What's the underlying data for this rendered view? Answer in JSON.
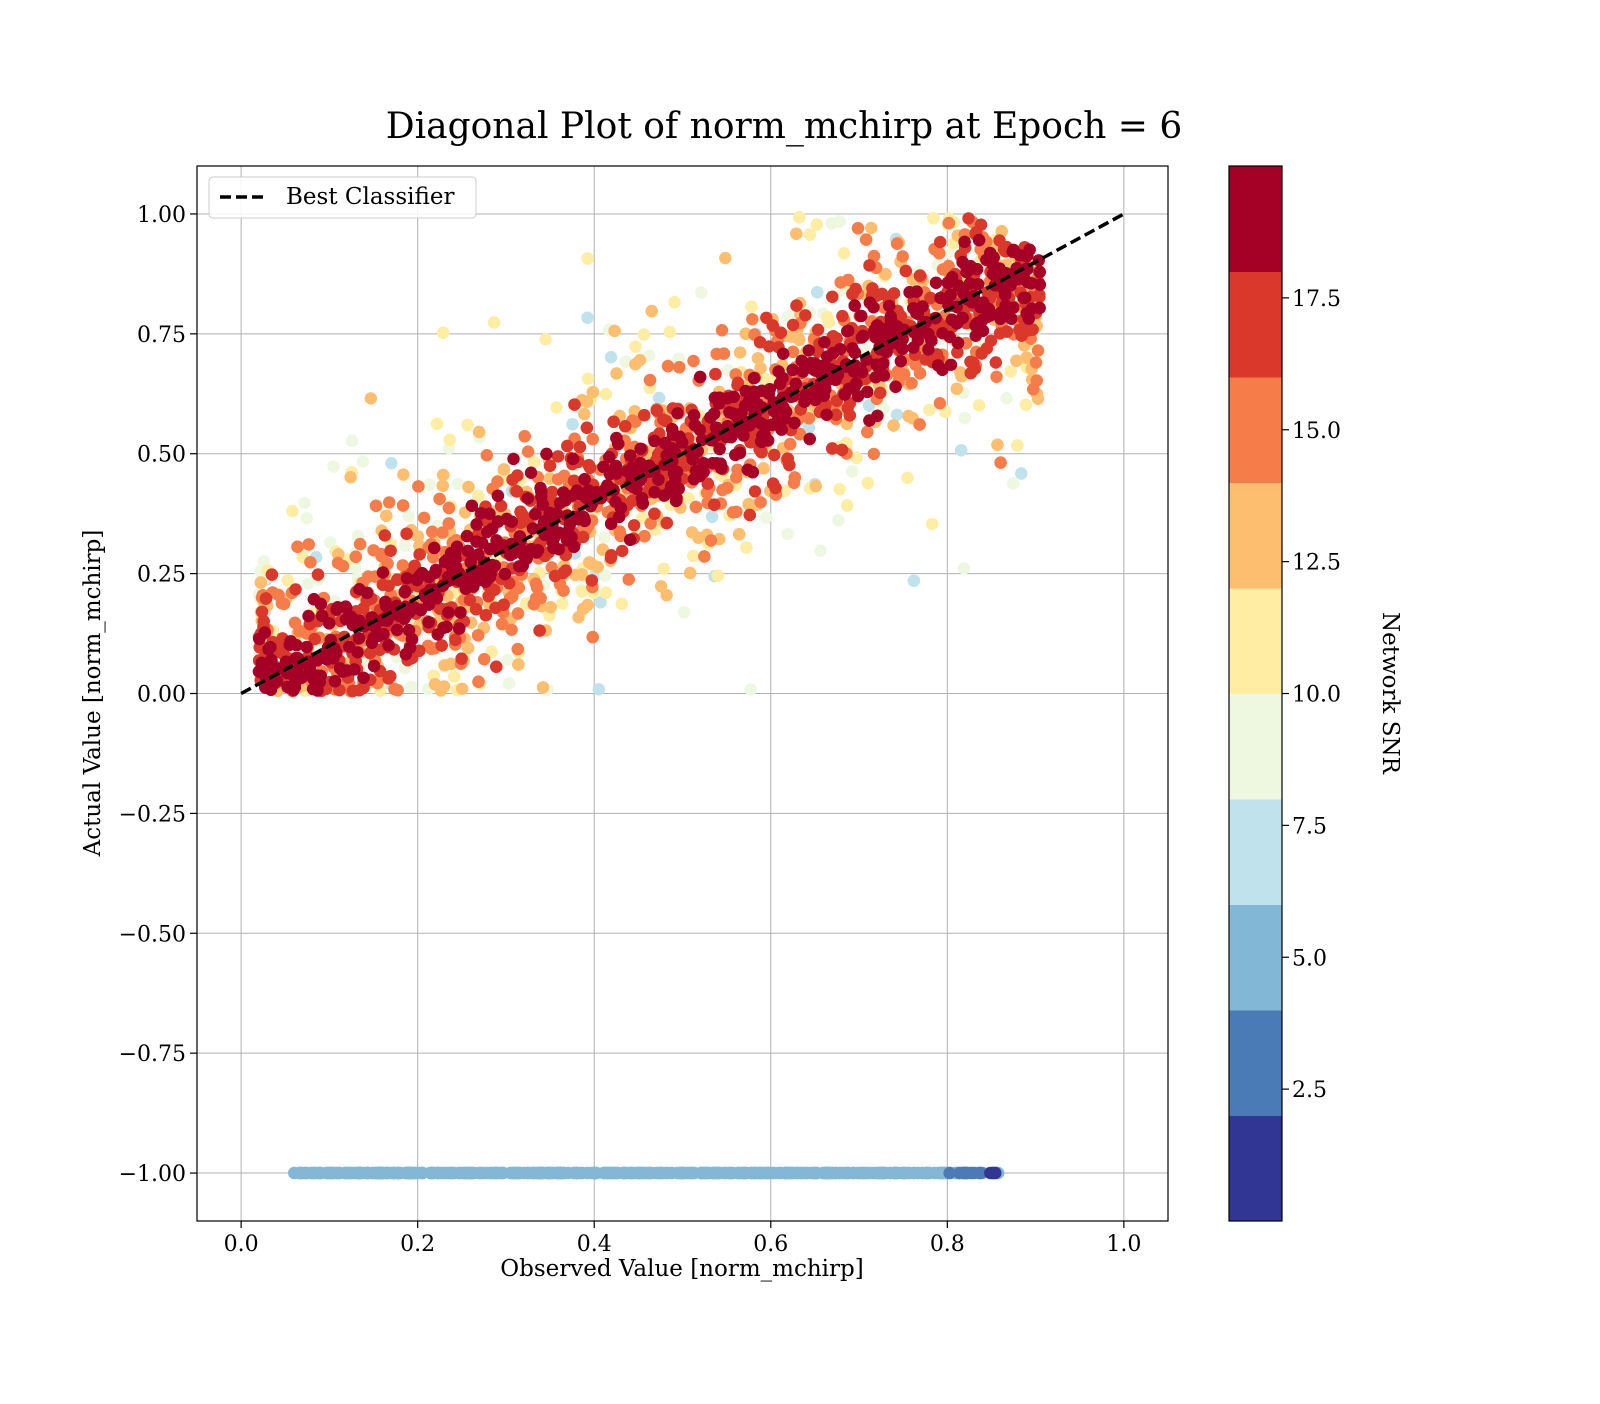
{
  "chart_data": {
    "type": "scatter",
    "title": "Diagonal Plot of norm_mchirp at Epoch = 6",
    "xlabel": "Observed Value [norm_mchirp]",
    "ylabel": "Actual Value [norm_mchirp]",
    "xlim": [
      -0.05,
      1.05
    ],
    "ylim": [
      -1.1,
      1.1
    ],
    "x_ticks": [
      0.0,
      0.2,
      0.4,
      0.6,
      0.8,
      1.0
    ],
    "x_tick_labels": [
      "0.0",
      "0.2",
      "0.4",
      "0.6",
      "0.8",
      "1.0"
    ],
    "y_ticks": [
      1.0,
      0.75,
      0.5,
      0.25,
      0.0,
      -0.25,
      -0.5,
      -0.75,
      -1.0
    ],
    "y_tick_labels": [
      "1.00",
      "0.75",
      "0.50",
      "0.25",
      "0.00",
      "−0.25",
      "−0.50",
      "−0.75",
      "−1.00"
    ],
    "grid": true,
    "legend": {
      "placement": "top-left",
      "entries": [
        {
          "label": "Best Classifier",
          "style": "dashed",
          "color": "#000000"
        }
      ]
    },
    "reference_line": {
      "name": "Best Classifier",
      "x": [
        0.0,
        1.0
      ],
      "y": [
        0.0,
        1.0
      ]
    },
    "colorbar": {
      "label": "Network SNR",
      "range": [
        0,
        20
      ],
      "ticks": [
        2.5,
        5.0,
        7.5,
        10.0,
        12.5,
        15.0,
        17.5
      ],
      "tick_labels": [
        "2.5",
        "5.0",
        "7.5",
        "10.0",
        "12.5",
        "15.0",
        "17.5"
      ],
      "bins": [
        0,
        2,
        4,
        6,
        8,
        10,
        12,
        14,
        16,
        18,
        20
      ],
      "colors": [
        "#313695",
        "#4a7bb7",
        "#83b7d6",
        "#c0e2ed",
        "#eef8e0",
        "#feeda2",
        "#fdbe70",
        "#f67d4a",
        "#da382a",
        "#a50026"
      ]
    },
    "series": [
      {
        "description_key": "detected",
        "x_range": [
          0.02,
          0.9
        ],
        "y_range": [
          0.0,
          1.0
        ],
        "snr_range": [
          6,
          20
        ]
      },
      {
        "description_key": "undetected",
        "y": -1.0,
        "x_range": [
          0.06,
          0.865
        ],
        "snr_range": [
          0,
          6
        ]
      }
    ]
  }
}
